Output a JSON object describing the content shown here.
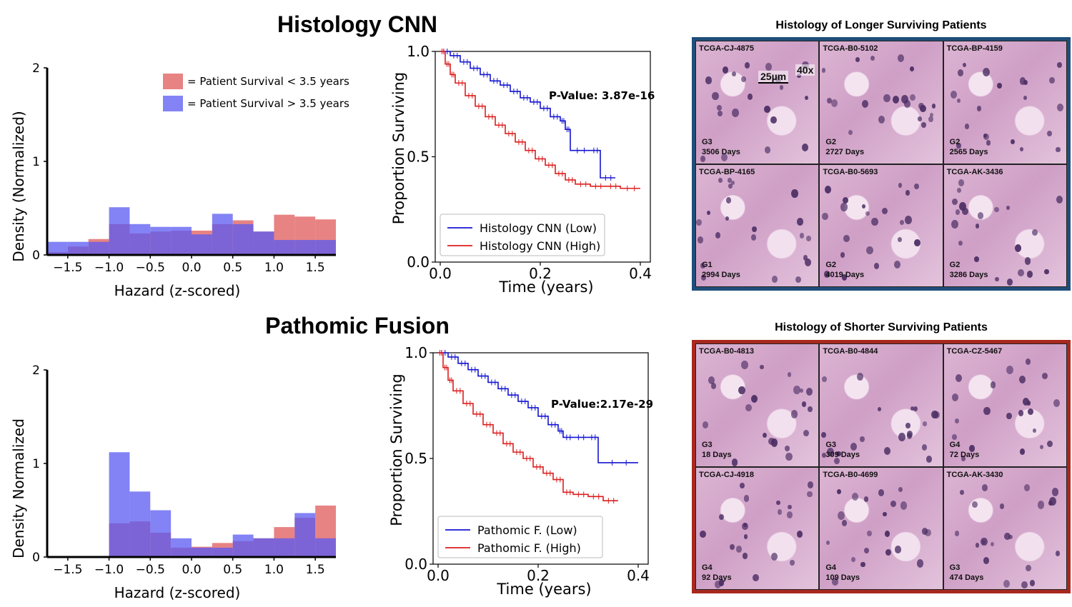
{
  "titles": {
    "top": "Histology CNN",
    "bottom": "Pathomic Fusion"
  },
  "panels": {
    "top": {
      "title": "Histology of Longer Surviving Patients",
      "border_color": "#1f4e7a",
      "scale_label": "25µm",
      "magnification": "40x",
      "tiles": [
        {
          "id": "TCGA-CJ-4875",
          "grade": "G3",
          "days": "3506 Days"
        },
        {
          "id": "TCGA-B0-5102",
          "grade": "G2",
          "days": "2727 Days"
        },
        {
          "id": "TCGA-BP-4159",
          "grade": "G2",
          "days": "2565 Days"
        },
        {
          "id": "TCGA-BP-4165",
          "grade": "G1",
          "days": "2994 Days"
        },
        {
          "id": "TCGA-B0-5693",
          "grade": "G2",
          "days": "4019 Days"
        },
        {
          "id": "TCGA-AK-3436",
          "grade": "G2",
          "days": "3286 Days"
        }
      ]
    },
    "bottom": {
      "title": "Histology of Shorter Surviving Patients",
      "border_color": "#a8281e",
      "tiles": [
        {
          "id": "TCGA-B0-4813",
          "grade": "G3",
          "days": "18 Days"
        },
        {
          "id": "TCGA-B0-4844",
          "grade": "G3",
          "days": "309 Days"
        },
        {
          "id": "TCGA-CZ-5467",
          "grade": "G4",
          "days": "72 Days"
        },
        {
          "id": "TCGA-CJ-4918",
          "grade": "G4",
          "days": "92 Days"
        },
        {
          "id": "TCGA-B0-4699",
          "grade": "G4",
          "days": "109 Days"
        },
        {
          "id": "TCGA-AK-3430",
          "grade": "G3",
          "days": "474 Days"
        }
      ]
    }
  },
  "chart_data": [
    {
      "type": "bar",
      "kind": "histogram",
      "name": "hist-top",
      "title": "",
      "xlabel": "Hazard (z-scored)",
      "ylabel": "Density (Normalized)",
      "xlim": [
        -1.75,
        1.75
      ],
      "ylim": [
        0,
        2
      ],
      "xticks": [
        -1.5,
        -1.0,
        -0.5,
        0.0,
        0.5,
        1.0,
        1.5
      ],
      "xtick_labels": [
        "−1.5",
        "−1.0",
        "−0.5",
        "0.0",
        "0.5",
        "1.0",
        "1.5"
      ],
      "yticks": [
        0,
        1,
        2
      ],
      "ytick_labels": [
        "0",
        "1",
        "2"
      ],
      "legend": [
        "= Patient Survival < 3.5 years",
        "= Patient Survival > 3.5 years"
      ],
      "bin_edges": [
        -1.75,
        -1.5,
        -1.25,
        -1.0,
        -0.75,
        -0.5,
        -0.25,
        0.0,
        0.25,
        0.5,
        0.75,
        1.0,
        1.25,
        1.5,
        1.75
      ],
      "series": [
        {
          "name": "Patient Survival < 3.5 years",
          "color": "#e05a5a",
          "values": [
            0.03,
            0.09,
            0.17,
            0.33,
            0.23,
            0.25,
            0.26,
            0.26,
            0.33,
            0.37,
            0.25,
            0.43,
            0.41,
            0.38
          ]
        },
        {
          "name": "Patient Survival > 3.5 years",
          "color": "#5a5af2",
          "values": [
            0.14,
            0.14,
            0.14,
            0.51,
            0.33,
            0.3,
            0.3,
            0.22,
            0.44,
            0.33,
            0.25,
            0.16,
            0.16,
            0.16
          ]
        }
      ]
    },
    {
      "type": "line",
      "kind": "kaplan-meier",
      "name": "km-top",
      "xlabel": "Time (years)",
      "ylabel": "Proportion Surviving",
      "xlim": [
        -0.01,
        0.42
      ],
      "ylim": [
        0,
        1
      ],
      "xticks": [
        0.0,
        0.2,
        0.4
      ],
      "xtick_labels": [
        "0.0",
        "0.2",
        "0.4"
      ],
      "yticks": [
        0.0,
        0.5,
        1.0
      ],
      "ytick_labels": [
        "0.0",
        "0.5",
        "1.0"
      ],
      "annotation": "P-Value: 3.87e-16",
      "series": [
        {
          "name": "Histology CNN (Low)",
          "color": "#1414d2",
          "x": [
            0,
            0.02,
            0.04,
            0.06,
            0.08,
            0.1,
            0.12,
            0.14,
            0.16,
            0.18,
            0.2,
            0.22,
            0.24,
            0.25,
            0.26,
            0.3,
            0.32,
            0.35
          ],
          "y": [
            1.0,
            0.98,
            0.95,
            0.92,
            0.89,
            0.86,
            0.84,
            0.81,
            0.78,
            0.76,
            0.73,
            0.69,
            0.67,
            0.63,
            0.53,
            0.53,
            0.4,
            0.4
          ]
        },
        {
          "name": "Histology CNN (High)",
          "color": "#dc1e1e",
          "x": [
            0,
            0.01,
            0.02,
            0.03,
            0.05,
            0.07,
            0.09,
            0.11,
            0.13,
            0.15,
            0.17,
            0.19,
            0.21,
            0.23,
            0.25,
            0.27,
            0.3,
            0.33,
            0.36,
            0.4
          ],
          "y": [
            1.0,
            0.94,
            0.89,
            0.85,
            0.79,
            0.74,
            0.69,
            0.65,
            0.61,
            0.57,
            0.53,
            0.49,
            0.46,
            0.42,
            0.39,
            0.37,
            0.36,
            0.36,
            0.35,
            0.35
          ]
        }
      ]
    },
    {
      "type": "bar",
      "kind": "histogram",
      "name": "hist-bottom",
      "title": "",
      "xlabel": "Hazard (z-scored)",
      "ylabel": "Density Normalized",
      "xlim": [
        -1.75,
        1.75
      ],
      "ylim": [
        0,
        2
      ],
      "xticks": [
        -1.5,
        -1.0,
        -0.5,
        0.0,
        0.5,
        1.0,
        1.5
      ],
      "xtick_labels": [
        "−1.5",
        "−1.0",
        "−0.5",
        "0.0",
        "0.5",
        "1.0",
        "1.5"
      ],
      "yticks": [
        0,
        1,
        2
      ],
      "ytick_labels": [
        "0",
        "1",
        "2"
      ],
      "bin_edges": [
        -1.75,
        -1.5,
        -1.25,
        -1.0,
        -0.75,
        -0.5,
        -0.25,
        0.0,
        0.25,
        0.5,
        0.75,
        1.0,
        1.25,
        1.5,
        1.75
      ],
      "series": [
        {
          "name": "Patient Survival < 3.5 years",
          "color": "#e05a5a",
          "values": [
            0.0,
            0.0,
            0.0,
            0.36,
            0.38,
            0.26,
            0.1,
            0.11,
            0.15,
            0.17,
            0.2,
            0.32,
            0.42,
            0.55
          ]
        },
        {
          "name": "Patient Survival > 3.5 years",
          "color": "#5a5af2",
          "values": [
            0.0,
            0.0,
            0.0,
            1.12,
            0.7,
            0.5,
            0.2,
            0.1,
            0.1,
            0.24,
            0.2,
            0.2,
            0.47,
            0.2
          ]
        }
      ]
    },
    {
      "type": "line",
      "kind": "kaplan-meier",
      "name": "km-bottom",
      "xlabel": "Time (years)",
      "ylabel": "Proportion Surviving",
      "xlim": [
        -0.01,
        0.42
      ],
      "ylim": [
        0,
        1
      ],
      "xticks": [
        0.0,
        0.2,
        0.4
      ],
      "xtick_labels": [
        "0.0",
        "0.2",
        "0.4"
      ],
      "yticks": [
        0.0,
        0.5,
        1.0
      ],
      "ytick_labels": [
        "0.0",
        "0.5",
        "1.0"
      ],
      "annotation": "P-Value:2.17e-29",
      "series": [
        {
          "name": "Pathomic F. (Low)",
          "color": "#1414d2",
          "x": [
            0,
            0.02,
            0.04,
            0.06,
            0.08,
            0.1,
            0.12,
            0.14,
            0.16,
            0.18,
            0.2,
            0.22,
            0.24,
            0.25,
            0.27,
            0.3,
            0.32,
            0.4
          ],
          "y": [
            1.0,
            0.98,
            0.95,
            0.92,
            0.89,
            0.86,
            0.83,
            0.8,
            0.77,
            0.74,
            0.7,
            0.66,
            0.63,
            0.6,
            0.6,
            0.6,
            0.48,
            0.48
          ]
        },
        {
          "name": "Pathomic F. (High)",
          "color": "#dc1e1e",
          "x": [
            0,
            0.01,
            0.02,
            0.03,
            0.05,
            0.07,
            0.09,
            0.11,
            0.13,
            0.15,
            0.17,
            0.19,
            0.21,
            0.23,
            0.25,
            0.27,
            0.3,
            0.33,
            0.36
          ],
          "y": [
            1.0,
            0.93,
            0.87,
            0.82,
            0.76,
            0.71,
            0.66,
            0.62,
            0.57,
            0.53,
            0.5,
            0.46,
            0.43,
            0.4,
            0.34,
            0.33,
            0.32,
            0.3,
            0.3
          ]
        }
      ]
    }
  ]
}
